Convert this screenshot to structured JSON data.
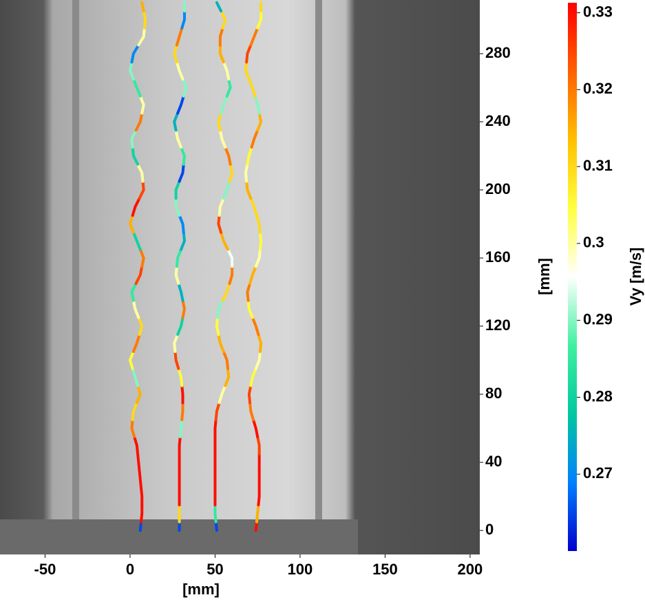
{
  "chart_data": {
    "type": "trajectory",
    "xlabel": "[mm]",
    "ylabel": "[mm]",
    "colorbar_label": "Vy [m/s]",
    "xlim": [
      -76.5,
      205.7
    ],
    "ylim": [
      -14.1,
      311.5
    ],
    "clim": [
      0.26,
      0.3313
    ],
    "xticks": [
      -50,
      0,
      50,
      100,
      150,
      200
    ],
    "yticks": [
      0,
      40,
      80,
      120,
      160,
      200,
      240,
      280
    ],
    "cticks": [
      0.27,
      0.28,
      0.29,
      0.3,
      0.31,
      0.32,
      0.33
    ],
    "colormap": [
      "#0000cc",
      "#0080ff",
      "#00c8a0",
      "#40f0a0",
      "#ffffff",
      "#ffff40",
      "#ffc000",
      "#ff6000",
      "#ff0000"
    ],
    "y": [
      0,
      10,
      20,
      30,
      40,
      50,
      60,
      70,
      80,
      90,
      100,
      110,
      120,
      130,
      140,
      150,
      160,
      170,
      180,
      190,
      200,
      210,
      220,
      230,
      240,
      250,
      260,
      270,
      280,
      290,
      300,
      310
    ],
    "series": [
      {
        "x": [
          6,
          7,
          7,
          6,
          5,
          4,
          1,
          2,
          6,
          3,
          0,
          4,
          7,
          3,
          1,
          6,
          8,
          4,
          0,
          3,
          8,
          7,
          2,
          1,
          6,
          8,
          4,
          0,
          2,
          8,
          9,
          7
        ],
        "vy": [
          0.265,
          0.33,
          0.33,
          0.33,
          0.33,
          0.33,
          0.32,
          0.31,
          0.315,
          0.29,
          0.305,
          0.32,
          0.31,
          0.3,
          0.285,
          0.325,
          0.32,
          0.28,
          0.315,
          0.33,
          0.325,
          0.3,
          0.28,
          0.29,
          0.32,
          0.3,
          0.285,
          0.29,
          0.27,
          0.3,
          0.31,
          0.315
        ]
      },
      {
        "x": [
          29,
          29,
          29,
          29,
          29,
          29,
          30,
          31,
          31,
          30,
          27,
          26,
          30,
          32,
          30,
          27,
          28,
          32,
          31,
          27,
          27,
          31,
          32,
          28,
          26,
          30,
          33,
          29,
          26,
          29,
          32,
          32
        ],
        "vy": [
          0.265,
          0.31,
          0.33,
          0.33,
          0.33,
          0.33,
          0.29,
          0.32,
          0.33,
          0.305,
          0.325,
          0.3,
          0.28,
          0.32,
          0.275,
          0.3,
          0.285,
          0.275,
          0.27,
          0.29,
          0.28,
          0.265,
          0.285,
          0.3,
          0.275,
          0.265,
          0.29,
          0.3,
          0.31,
          0.32,
          0.27,
          0.29
        ]
      },
      {
        "x": [
          51,
          50,
          50,
          50,
          50,
          50,
          50,
          51,
          54,
          58,
          57,
          53,
          51,
          52,
          57,
          60,
          60,
          55,
          52,
          53,
          57,
          60,
          58,
          54,
          52,
          55,
          59,
          57,
          53,
          53,
          56,
          51
        ],
        "vy": [
          0.265,
          0.285,
          0.33,
          0.33,
          0.33,
          0.33,
          0.33,
          0.325,
          0.3,
          0.315,
          0.32,
          0.315,
          0.305,
          0.29,
          0.31,
          0.32,
          0.295,
          0.315,
          0.325,
          0.3,
          0.29,
          0.31,
          0.32,
          0.3,
          0.31,
          0.29,
          0.285,
          0.3,
          0.315,
          0.32,
          0.31,
          0.275
        ]
      },
      {
        "x": [
          74,
          75,
          76,
          76,
          76,
          76,
          74,
          71,
          70,
          72,
          76,
          77,
          74,
          70,
          69,
          72,
          76,
          77,
          76,
          73,
          69,
          68,
          70,
          73,
          77,
          75,
          72,
          68,
          69,
          73,
          77,
          77
        ],
        "vy": [
          0.33,
          0.315,
          0.33,
          0.33,
          0.33,
          0.325,
          0.33,
          0.32,
          0.325,
          0.305,
          0.3,
          0.315,
          0.32,
          0.305,
          0.32,
          0.315,
          0.3,
          0.305,
          0.31,
          0.31,
          0.315,
          0.3,
          0.305,
          0.32,
          0.315,
          0.29,
          0.31,
          0.31,
          0.325,
          0.32,
          0.305,
          0.31
        ]
      }
    ]
  }
}
